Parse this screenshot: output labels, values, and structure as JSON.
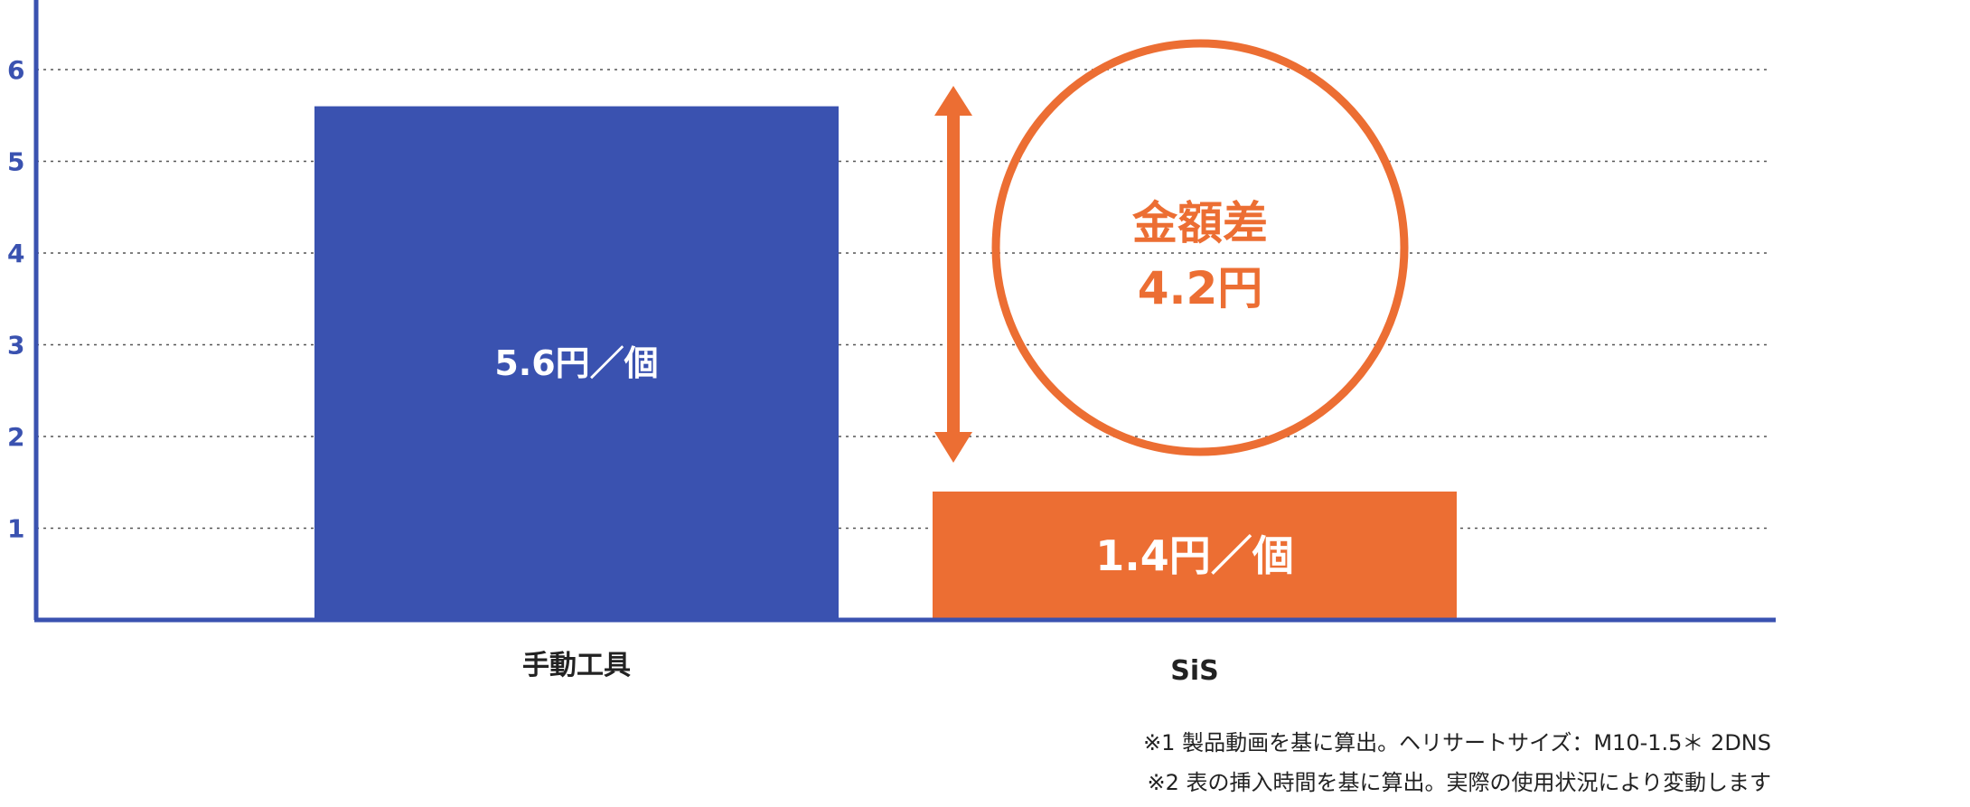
{
  "chart_data": {
    "type": "bar",
    "categories": [
      "手動工具",
      "SiS"
    ],
    "values": [
      5.6,
      1.4
    ],
    "data_labels": [
      "5.6円／個",
      "1.4円／個"
    ],
    "bar_colors": [
      "#3a52b0",
      "#ec6e33"
    ],
    "ylim": [
      0,
      6
    ],
    "yticks": [
      "1",
      "2",
      "3",
      "4",
      "5",
      "6"
    ],
    "grid": true,
    "annotation": {
      "line1": "金額差",
      "line2": "4.2円",
      "color": "#ec6e33"
    }
  },
  "footnotes": [
    "※1  製品動画を基に算出。ヘリサートサイズ：M10-1.5＊ 2DNS",
    "※2  表の挿入時間を基に算出。実際の使用状況により変動します"
  ]
}
